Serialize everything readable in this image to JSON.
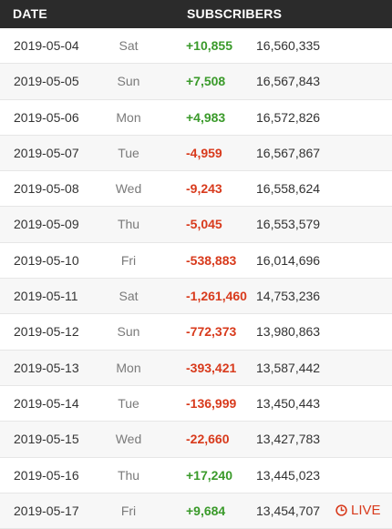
{
  "header": {
    "date_label": "DATE",
    "subscribers_label": "SUBSCRIBERS"
  },
  "rows": [
    {
      "date": "2019-05-04",
      "day": "Sat",
      "change": "+10,855",
      "total": "16,560,335",
      "trend": "pos"
    },
    {
      "date": "2019-05-05",
      "day": "Sun",
      "change": "+7,508",
      "total": "16,567,843",
      "trend": "pos"
    },
    {
      "date": "2019-05-06",
      "day": "Mon",
      "change": "+4,983",
      "total": "16,572,826",
      "trend": "pos"
    },
    {
      "date": "2019-05-07",
      "day": "Tue",
      "change": "-4,959",
      "total": "16,567,867",
      "trend": "neg"
    },
    {
      "date": "2019-05-08",
      "day": "Wed",
      "change": "-9,243",
      "total": "16,558,624",
      "trend": "neg"
    },
    {
      "date": "2019-05-09",
      "day": "Thu",
      "change": "-5,045",
      "total": "16,553,579",
      "trend": "neg"
    },
    {
      "date": "2019-05-10",
      "day": "Fri",
      "change": "-538,883",
      "total": "16,014,696",
      "trend": "neg"
    },
    {
      "date": "2019-05-11",
      "day": "Sat",
      "change": "-1,261,460",
      "total": "14,753,236",
      "trend": "neg"
    },
    {
      "date": "2019-05-12",
      "day": "Sun",
      "change": "-772,373",
      "total": "13,980,863",
      "trend": "neg"
    },
    {
      "date": "2019-05-13",
      "day": "Mon",
      "change": "-393,421",
      "total": "13,587,442",
      "trend": "neg"
    },
    {
      "date": "2019-05-14",
      "day": "Tue",
      "change": "-136,999",
      "total": "13,450,443",
      "trend": "neg"
    },
    {
      "date": "2019-05-15",
      "day": "Wed",
      "change": "-22,660",
      "total": "13,427,783",
      "trend": "neg"
    },
    {
      "date": "2019-05-16",
      "day": "Thu",
      "change": "+17,240",
      "total": "13,445,023",
      "trend": "pos"
    },
    {
      "date": "2019-05-17",
      "day": "Fri",
      "change": "+9,684",
      "total": "13,454,707",
      "trend": "pos",
      "live": "LIVE"
    }
  ],
  "colors": {
    "header_bg": "#2b2b2b",
    "positive": "#3a9a2a",
    "negative": "#d83a1c",
    "live": "#d83a1c"
  },
  "icons": {
    "live_icon": "clock-icon"
  }
}
